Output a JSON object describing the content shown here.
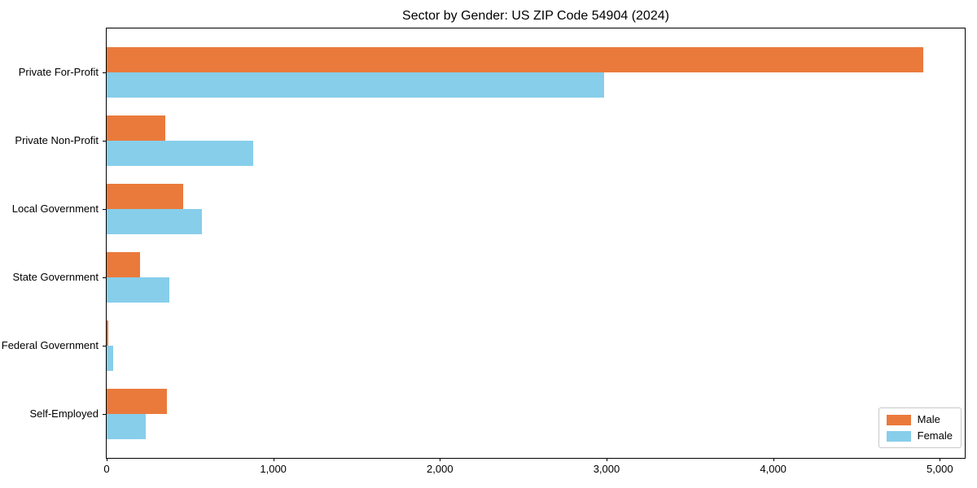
{
  "chart_data": {
    "type": "bar",
    "orientation": "horizontal",
    "title": "Sector by Gender: US ZIP Code 54904 (2024)",
    "categories": [
      "Private For-Profit",
      "Private Non-Profit",
      "Local Government",
      "State Government",
      "Federal Government",
      "Self-Employed"
    ],
    "series": [
      {
        "name": "Male",
        "color": "#EA7A3B",
        "values": [
          4900,
          350,
          460,
          200,
          8,
          360
        ]
      },
      {
        "name": "Female",
        "color": "#87CEEB",
        "values": [
          2985,
          880,
          570,
          375,
          40,
          235
        ]
      }
    ],
    "xlabel": "",
    "ylabel": "",
    "xlim": [
      0,
      5150
    ],
    "x_ticks": [
      0,
      1000,
      2000,
      3000,
      4000,
      5000
    ],
    "x_tick_labels": [
      "0",
      "1,000",
      "2,000",
      "3,000",
      "4,000",
      "5,000"
    ],
    "grid": false,
    "legend_position": "lower right",
    "plot_border_color": "#000000",
    "background_color": "#ffffff"
  }
}
